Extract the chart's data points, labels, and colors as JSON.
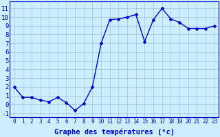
{
  "x": [
    0,
    1,
    2,
    3,
    4,
    5,
    6,
    7,
    8,
    9,
    10,
    11,
    12,
    13,
    14,
    15,
    16,
    17,
    18,
    19,
    20,
    21,
    22,
    23
  ],
  "y": [
    2.0,
    0.8,
    0.8,
    0.5,
    0.3,
    0.8,
    0.2,
    -0.7,
    0.1,
    2.0,
    7.0,
    9.7,
    9.8,
    10.0,
    10.3,
    7.2,
    9.7,
    11.0,
    9.8,
    9.4,
    8.7,
    8.7,
    8.7,
    9.0
  ],
  "line_color": "#0000cc",
  "marker": "D",
  "marker_size": 2.0,
  "xlabel": "Graphe des températures (°c)",
  "xlabel_fontsize": 7.5,
  "ylim": [
    -1.5,
    11.8
  ],
  "xlim": [
    -0.5,
    23.5
  ],
  "yticks": [
    -1,
    0,
    1,
    2,
    3,
    4,
    5,
    6,
    7,
    8,
    9,
    10,
    11
  ],
  "xtick_labels": [
    "0",
    "1",
    "2",
    "3",
    "4",
    "5",
    "6",
    "7",
    "8",
    "9",
    "10",
    "11",
    "12",
    "13",
    "14",
    "15",
    "16",
    "17",
    "18",
    "19",
    "20",
    "21",
    "22",
    "23"
  ],
  "background_color": "#cceeff",
  "grid_color": "#99cccc",
  "tick_label_color": "#0000cc",
  "axis_label_color": "#0000cc",
  "ytick_fontsize": 6.5,
  "xtick_fontsize": 5.5,
  "line_width": 1.0
}
